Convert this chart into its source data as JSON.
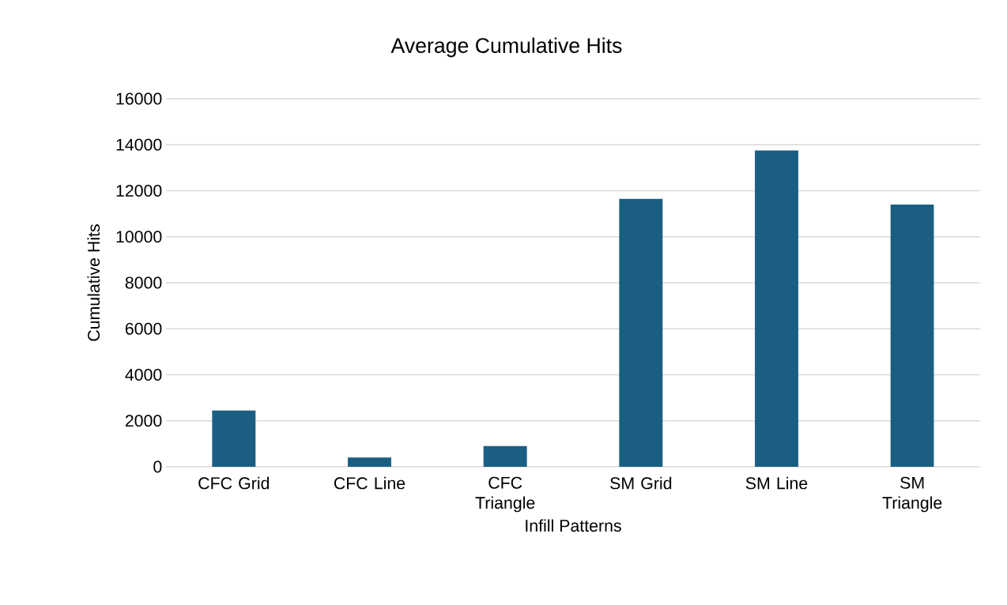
{
  "chart_data": {
    "type": "bar",
    "title": "Average Cumulative Hits",
    "xlabel": "Infill Patterns",
    "ylabel": "Cumulative Hits",
    "categories": [
      "CFC Grid",
      "CFC Line",
      "CFC Triangle",
      "SM Grid",
      "SM Line",
      "SM Triangle"
    ],
    "values": [
      2450,
      400,
      900,
      11650,
      13750,
      11400
    ],
    "color": "#1a5f82",
    "ylim": [
      0,
      16000
    ],
    "yticks": [
      0,
      2000,
      4000,
      6000,
      8000,
      10000,
      12000,
      14000,
      16000
    ],
    "grid": "y"
  }
}
